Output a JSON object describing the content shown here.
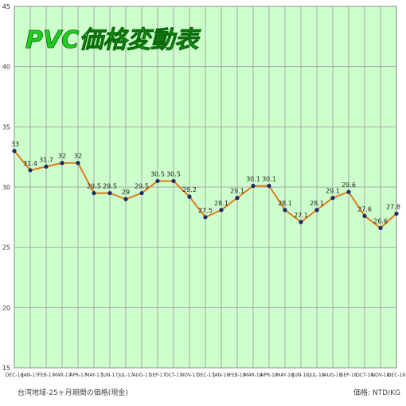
{
  "chart_data": {
    "type": "line",
    "title": "PVC価格変動表",
    "categories": [
      "DEC-16",
      "JAN-17",
      "FEB-17",
      "MAR-17",
      "APR-17",
      "MAY-17",
      "JUN-17",
      "JUL-17",
      "AUG-17",
      "SEP-17",
      "OCT-17",
      "NOV-17",
      "DEC-17",
      "JAN-18",
      "FEB-18",
      "MAR-18",
      "APR-18",
      "MAY-18",
      "JUN-18",
      "JUL-18",
      "AUG-18",
      "SEP-18",
      "OCT-18",
      "NOV-18",
      "DEC-18"
    ],
    "values": [
      33,
      31.4,
      31.7,
      32,
      32,
      29.5,
      29.5,
      29,
      29.5,
      30.5,
      30.5,
      29.2,
      27.5,
      28.1,
      29.1,
      30.1,
      30.1,
      28.1,
      27.1,
      28.1,
      29.1,
      29.6,
      27.6,
      26.6,
      27.8
    ],
    "ylim": [
      15,
      45
    ],
    "yticks": [
      15,
      20,
      25,
      30,
      35,
      40,
      45
    ],
    "grid": true,
    "colors": {
      "plot_background": "#ccffcc",
      "grid": "#a8a8a8",
      "line": "#e07a1a",
      "marker": "#1a2a6a",
      "title_fill": "#22cc22",
      "title_outline": "#0a6a0a"
    }
  },
  "footer": {
    "source": "台湾地域-25ヶ月期間の価格(現金)",
    "unit": "価格: NTD/KG"
  }
}
